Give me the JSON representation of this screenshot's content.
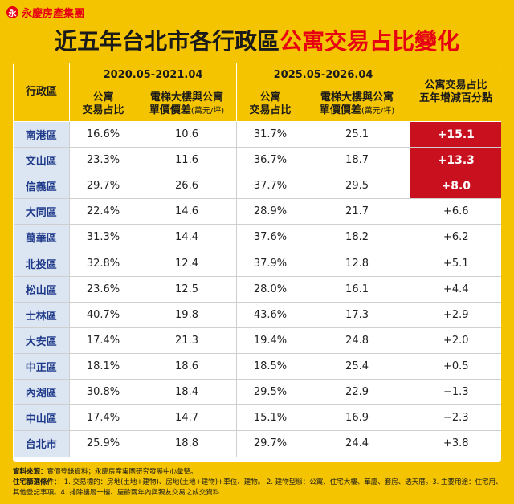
{
  "brand": {
    "logo_glyph": "永",
    "name": "永慶房產集團"
  },
  "title": {
    "part1": "近五年台北市各行政區",
    "part2": "公寓交易占比變化"
  },
  "headers": {
    "district": "行政區",
    "period1": "2020.05-2021.04",
    "period2": "2025.05-2026.04",
    "change_line1": "公寓交易占比",
    "change_line2": "五年增減百分點",
    "share_line1": "公寓",
    "share_line2": "交易占比",
    "diff_line1": "電梯大樓與公寓",
    "diff_line2": "單價價差",
    "diff_unit": "(萬元/坪)"
  },
  "rows": [
    {
      "district": "南港區",
      "share1": "16.6%",
      "diff1": "10.6",
      "share2": "31.7%",
      "diff2": "25.1",
      "change": "+15.1",
      "highlight": true
    },
    {
      "district": "文山區",
      "share1": "23.3%",
      "diff1": "11.6",
      "share2": "36.7%",
      "diff2": "18.7",
      "change": "+13.3",
      "highlight": true
    },
    {
      "district": "信義區",
      "share1": "29.7%",
      "diff1": "26.6",
      "share2": "37.7%",
      "diff2": "29.5",
      "change": "+8.0",
      "highlight": true
    },
    {
      "district": "大同區",
      "share1": "22.4%",
      "diff1": "14.6",
      "share2": "28.9%",
      "diff2": "21.7",
      "change": "+6.6",
      "highlight": false
    },
    {
      "district": "萬華區",
      "share1": "31.3%",
      "diff1": "14.4",
      "share2": "37.6%",
      "diff2": "18.2",
      "change": "+6.2",
      "highlight": false
    },
    {
      "district": "北投區",
      "share1": "32.8%",
      "diff1": "12.4",
      "share2": "37.9%",
      "diff2": "12.8",
      "change": "+5.1",
      "highlight": false
    },
    {
      "district": "松山區",
      "share1": "23.6%",
      "diff1": "12.5",
      "share2": "28.0%",
      "diff2": "16.1",
      "change": "+4.4",
      "highlight": false
    },
    {
      "district": "士林區",
      "share1": "40.7%",
      "diff1": "19.8",
      "share2": "43.6%",
      "diff2": "17.3",
      "change": "+2.9",
      "highlight": false
    },
    {
      "district": "大安區",
      "share1": "17.4%",
      "diff1": "21.3",
      "share2": "19.4%",
      "diff2": "24.8",
      "change": "+2.0",
      "highlight": false
    },
    {
      "district": "中正區",
      "share1": "18.1%",
      "diff1": "18.6",
      "share2": "18.5%",
      "diff2": "25.4",
      "change": "+0.5",
      "highlight": false
    },
    {
      "district": "內湖區",
      "share1": "30.8%",
      "diff1": "18.4",
      "share2": "29.5%",
      "diff2": "22.9",
      "change": "−1.3",
      "highlight": false
    },
    {
      "district": "中山區",
      "share1": "17.4%",
      "diff1": "14.7",
      "share2": "15.1%",
      "diff2": "16.9",
      "change": "−2.3",
      "highlight": false
    },
    {
      "district": "台北市",
      "share1": "25.9%",
      "diff1": "18.8",
      "share2": "29.7%",
      "diff2": "24.4",
      "change": "+3.8",
      "highlight": false
    }
  ],
  "notes": {
    "source_label": "資料來源：",
    "source_text": "實價登錄資料；永慶房產集團研究發展中心彙整。",
    "criteria_label": "住宅篩選條件：",
    "criteria_text": "：1. 交易標的：房地(土地+建物)、房地(土地+建物)+車位、建物。 2. 建物型態：公寓、住宅大樓、華廈、套房、透天厝。3. 主要用途：住宅用、其他登記事項。4. 排除樓層一樓、屋齡兩年內與親友交易之成交資料"
  },
  "colors": {
    "background": "#f5c400",
    "highlight": "#c8101e",
    "district_bg": "#dce6f2",
    "brand_red": "#e60012"
  }
}
